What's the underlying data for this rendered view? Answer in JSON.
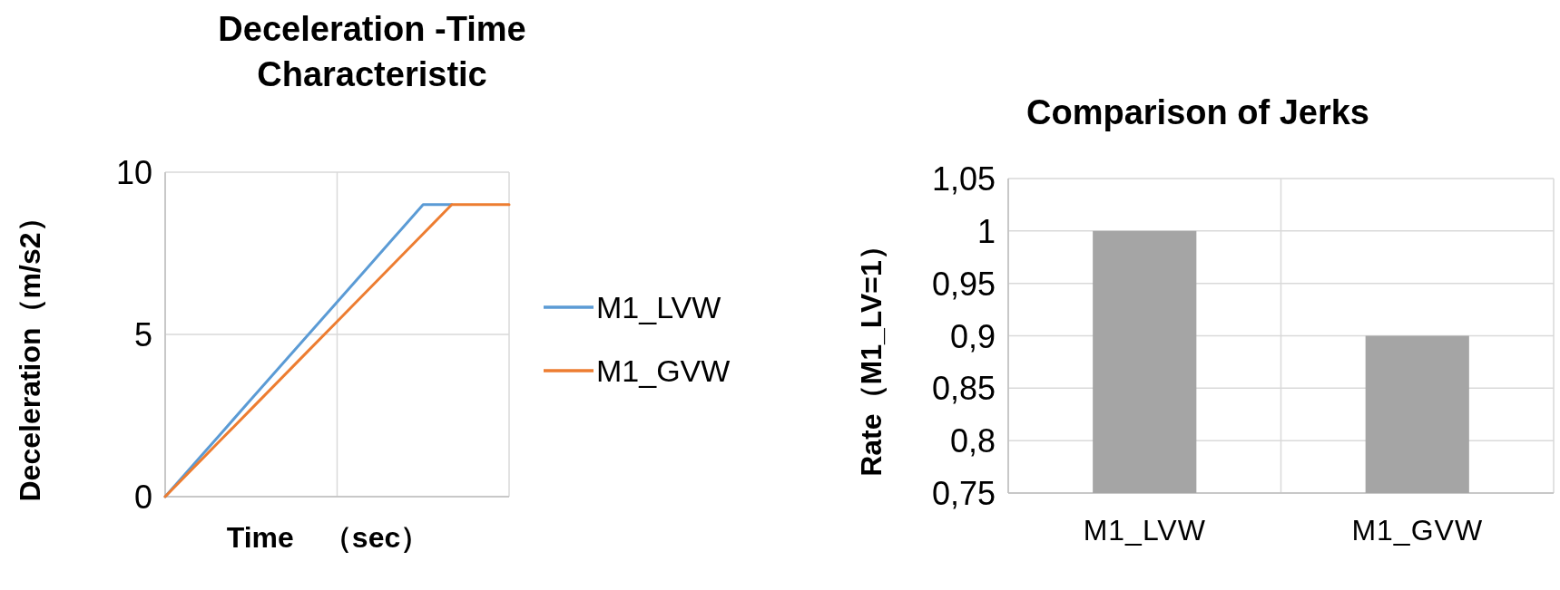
{
  "chart_data": [
    {
      "type": "line",
      "title": "Deceleration -Time Characteristic",
      "xlabel": "Time　（sec）",
      "ylabel": "Deceleration（m/s2）",
      "categories": [
        null,
        null,
        null,
        null,
        null,
        null,
        null,
        null,
        null,
        null,
        null,
        null,
        null
      ],
      "series": [
        {
          "name": "M1_LVW",
          "color": "#5b9bd5",
          "values": [
            0,
            1,
            2,
            3,
            4,
            5,
            6,
            7,
            8,
            9,
            9,
            null,
            null
          ]
        },
        {
          "name": "M1_GVW",
          "color": "#ed7d31",
          "values": [
            0,
            0.9,
            1.8,
            2.7,
            3.6,
            4.5,
            5.4,
            6.3,
            7.2,
            8.1,
            9,
            9,
            9
          ]
        }
      ],
      "ylim": [
        0,
        10
      ],
      "yticks": [
        0,
        5,
        10
      ],
      "grid": true,
      "legend": "right"
    },
    {
      "type": "bar",
      "title": "Comparison of Jerks",
      "ylabel": "Rate（M1_LV=1）",
      "categories": [
        "M1_LVW",
        "M1_GVW"
      ],
      "series": [
        {
          "color": "#a5a5a5",
          "values": [
            1,
            0.9
          ]
        }
      ],
      "ylim": [
        0.75,
        1.05
      ],
      "yticks": [
        {
          "value": 0.75,
          "label": "0,75"
        },
        {
          "value": 0.8,
          "label": "0,8"
        },
        {
          "value": 0.85,
          "label": "0,85"
        },
        {
          "value": 0.9,
          "label": "0,9"
        },
        {
          "value": 0.95,
          "label": "0,95"
        },
        1,
        {
          "value": 1.05,
          "label": "1,05"
        }
      ],
      "grid": true
    }
  ]
}
